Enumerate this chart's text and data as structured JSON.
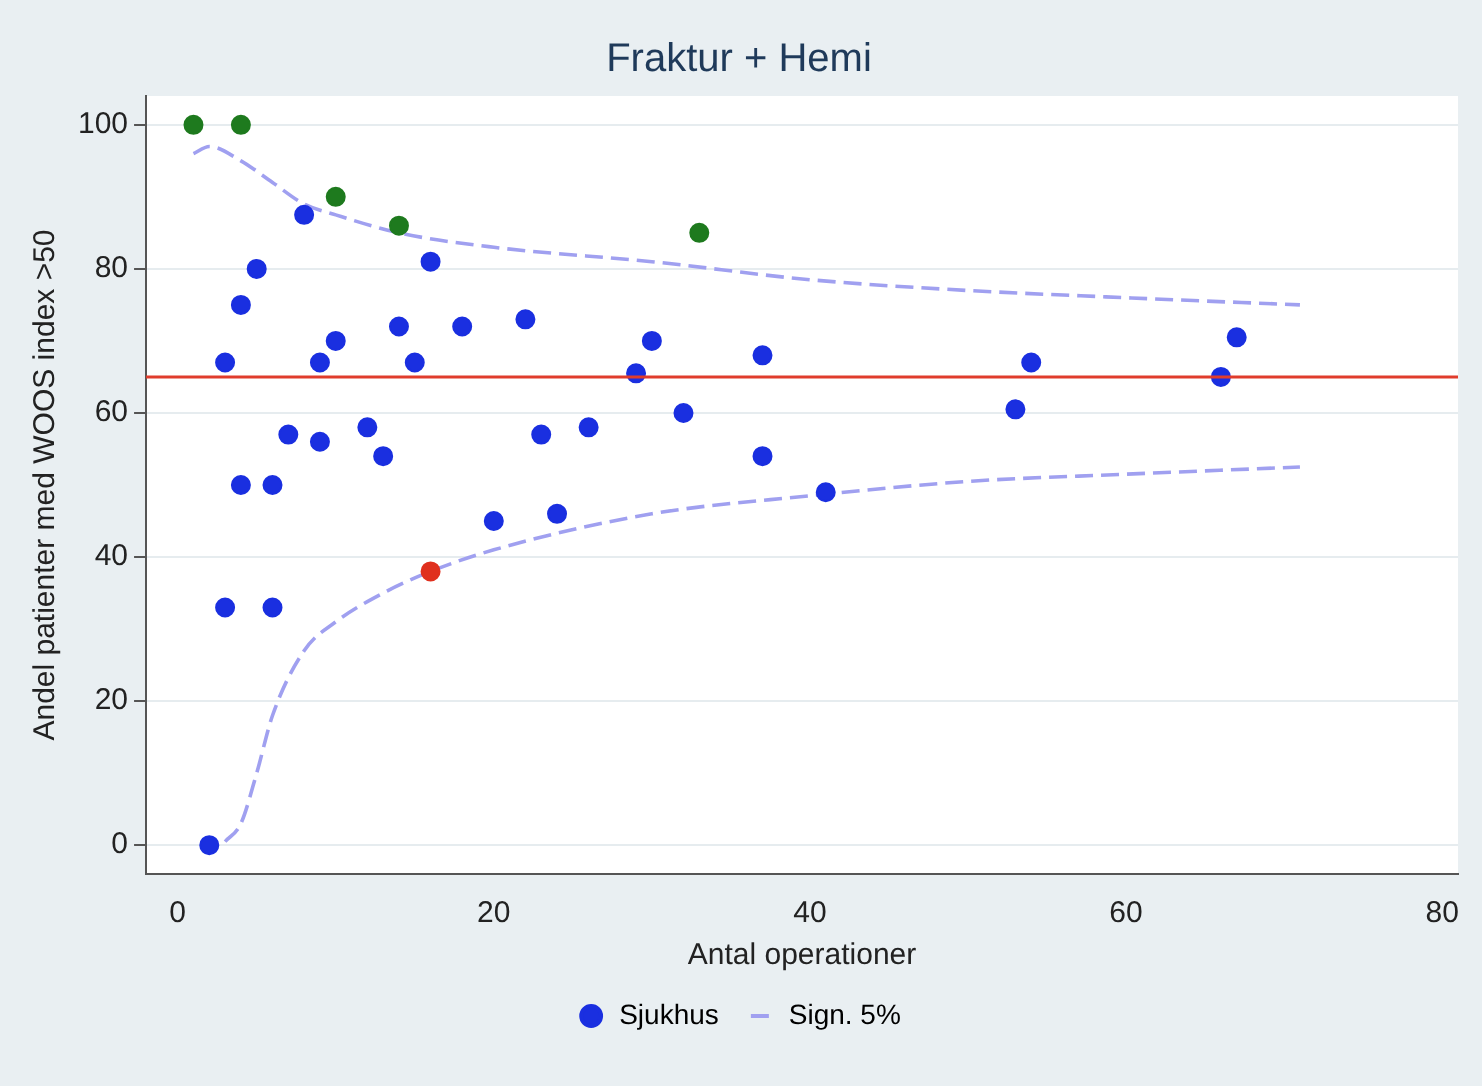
{
  "chart_data": {
    "type": "scatter",
    "title": "Fraktur + Hemi",
    "xlabel": "Antal operationer",
    "ylabel": "Andel patienter med WOOS index >50",
    "xlim": [
      -2,
      81
    ],
    "xticks": [
      0,
      20,
      40,
      60,
      80
    ],
    "ylim": [
      -4,
      104
    ],
    "yticks": [
      0,
      20,
      40,
      60,
      80,
      100
    ],
    "grid": "y",
    "legend": "bottom",
    "marker": "circle",
    "series": [
      {
        "name": "Sjukhus",
        "color": "#1a2fe0",
        "x": [
          1,
          4,
          10,
          14,
          33,
          16,
          2,
          3,
          3,
          4,
          4,
          5,
          6,
          6,
          7,
          8,
          9,
          9,
          10,
          12,
          13,
          14,
          15,
          16,
          18,
          20,
          22,
          23,
          24,
          26,
          29,
          30,
          32,
          37,
          37,
          41,
          53,
          54,
          66,
          67
        ],
        "values": [
          100,
          100,
          90,
          86,
          85,
          38,
          0,
          67,
          33,
          75,
          50,
          80,
          50,
          33,
          57,
          87.5,
          67,
          56,
          70,
          58,
          54,
          72,
          67,
          81,
          72,
          45,
          73,
          57,
          46,
          58,
          65.5,
          70,
          60,
          68,
          54,
          49,
          60.5,
          67,
          65,
          70.5
        ],
        "colors": [
          "#1e7a1e",
          "#1e7a1e",
          "#1e7a1e",
          "#1e7a1e",
          "#1e7a1e",
          "#e0301e",
          "#1a2fe0",
          "#1a2fe0",
          "#1a2fe0",
          "#1a2fe0",
          "#1a2fe0",
          "#1a2fe0",
          "#1a2fe0",
          "#1a2fe0",
          "#1a2fe0",
          "#1a2fe0",
          "#1a2fe0",
          "#1a2fe0",
          "#1a2fe0",
          "#1a2fe0",
          "#1a2fe0",
          "#1a2fe0",
          "#1a2fe0",
          "#1a2fe0",
          "#1a2fe0",
          "#1a2fe0",
          "#1a2fe0",
          "#1a2fe0",
          "#1a2fe0",
          "#1a2fe0",
          "#1a2fe0",
          "#1a2fe0",
          "#1a2fe0",
          "#1a2fe0",
          "#1a2fe0",
          "#1a2fe0",
          "#1a2fe0",
          "#1a2fe0",
          "#1a2fe0",
          "#1a2fe0"
        ]
      },
      {
        "name": "Sign. 5%",
        "type": "line",
        "line_style": "dashed",
        "marker": "none",
        "color": "#a0a0f0",
        "x": [
          1,
          2,
          4,
          6,
          8,
          10,
          14,
          20,
          30,
          40,
          50,
          60,
          71
        ],
        "values": [
          96,
          97,
          95,
          92,
          89,
          87.5,
          85,
          83,
          81,
          78.5,
          77,
          76,
          75
        ]
      },
      {
        "type": "line",
        "line_style": "dashed",
        "marker": "none",
        "color": "#a0a0f0",
        "x": [
          3,
          4,
          5,
          6,
          8,
          10,
          13,
          16,
          20,
          30,
          40,
          50,
          60,
          71
        ],
        "values": [
          0.5,
          3,
          10,
          18,
          27,
          31,
          35,
          38,
          41,
          46,
          48.5,
          50.5,
          51.5,
          52.5
        ]
      }
    ],
    "ref_lines": [
      {
        "axis": "y",
        "value": 65,
        "color": "#e03c2c"
      }
    ]
  }
}
